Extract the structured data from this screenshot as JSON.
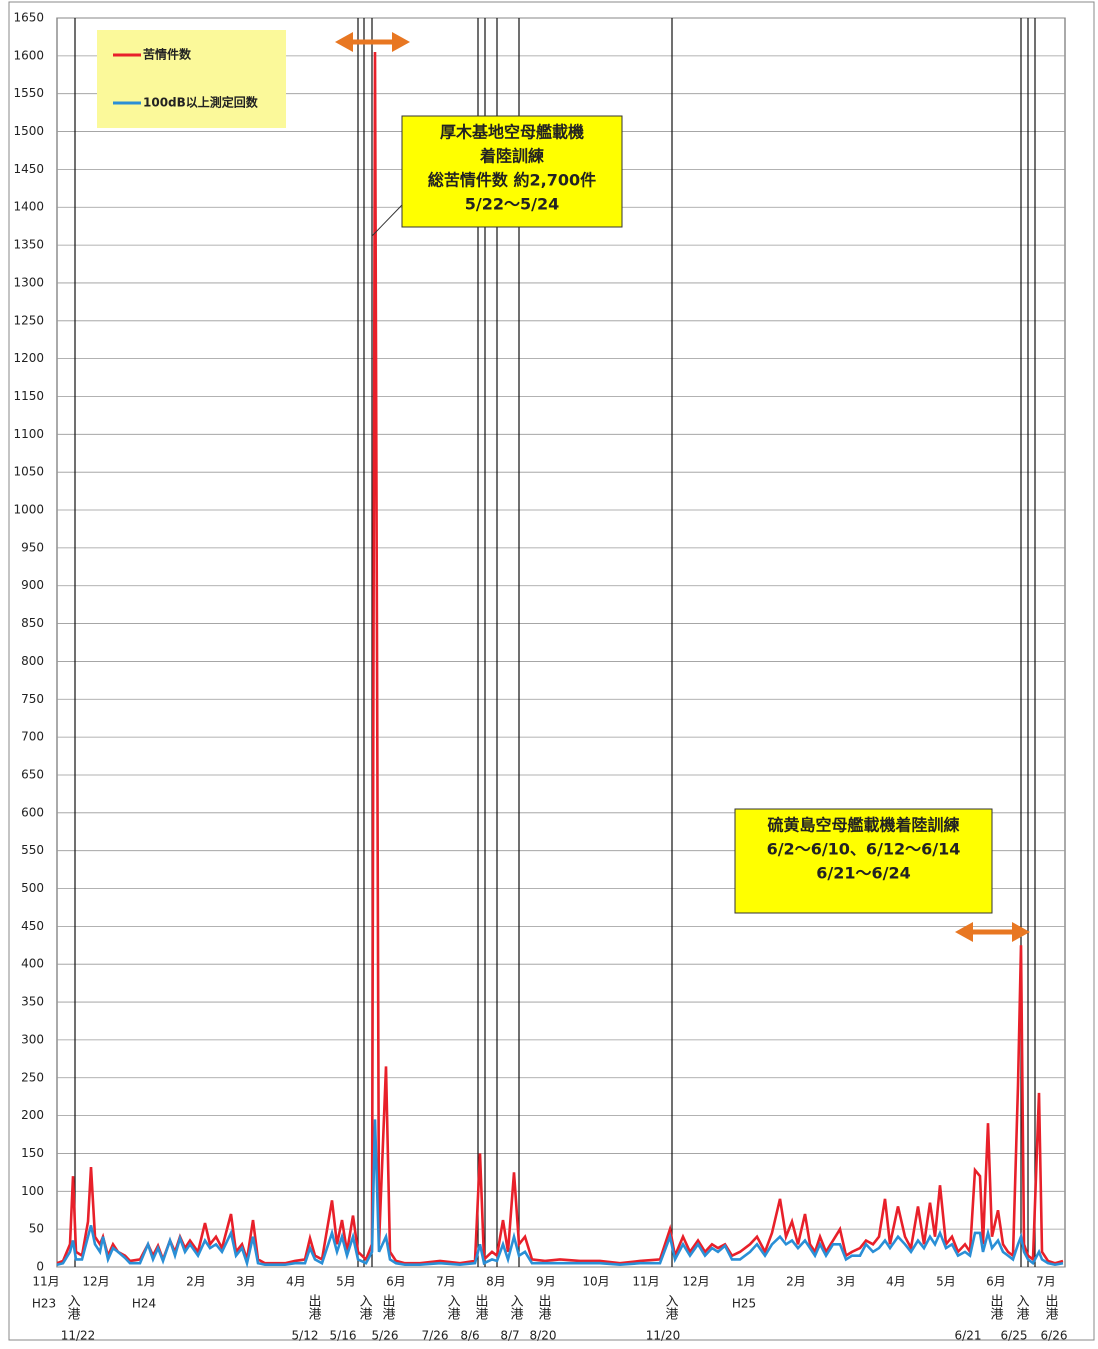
{
  "chart_data": {
    "type": "line",
    "x": [
      0.34,
      0.46,
      0.6,
      0.66,
      0.72,
      0.84,
      0.96,
      1.02,
      1.1,
      1.2,
      1.26,
      1.36,
      1.46,
      1.56,
      1.7,
      1.8,
      2,
      2.16,
      2.26,
      2.36,
      2.46,
      2.6,
      2.7,
      2.8,
      2.9,
      3,
      3.16,
      3.3,
      3.4,
      3.52,
      3.64,
      3.82,
      3.92,
      4.04,
      4.14,
      4.26,
      4.36,
      4.5,
      4.7,
      4.9,
      5.1,
      5.3,
      5.4,
      5.5,
      5.64,
      5.84,
      5.94,
      6.04,
      6.14,
      6.26,
      6.36,
      6.52,
      6.64,
      6.7,
      6.78,
      6.92,
      7,
      7.12,
      7.3,
      7.6,
      8,
      8.4,
      8.7,
      8.8,
      8.88,
      9.04,
      9.14,
      9.26,
      9.36,
      9.48,
      9.58,
      9.7,
      9.84,
      10.1,
      10.4,
      10.8,
      11.2,
      11.6,
      12,
      12.4,
      12.6,
      12.7,
      12.86,
      13,
      13.16,
      13.3,
      13.44,
      13.56,
      13.7,
      13.84,
      14,
      14.2,
      14.34,
      14.5,
      14.64,
      14.8,
      14.92,
      15.04,
      15.16,
      15.3,
      15.4,
      15.5,
      15.6,
      15.72,
      15.86,
      16,
      16.12,
      16.24,
      16.4,
      16.52,
      16.66,
      16.78,
      16.9,
      17,
      17.16,
      17.3,
      17.42,
      17.56,
      17.68,
      17.8,
      17.9,
      18,
      18.12,
      18.24,
      18.36,
      18.5,
      18.6,
      18.7,
      18.8,
      18.86,
      18.96,
      19.04,
      19.16,
      19.26,
      19.36,
      19.46,
      19.56,
      19.62,
      19.68,
      19.76,
      19.86,
      19.98,
      20.04,
      20.16,
      20.3,
      20.46
    ],
    "series": [
      {
        "name": "苦情件数",
        "color": "#e8202a",
        "values": [
          5,
          8,
          30,
          120,
          20,
          15,
          60,
          132,
          40,
          30,
          40,
          15,
          30,
          20,
          15,
          8,
          10,
          30,
          15,
          28,
          10,
          35,
          20,
          40,
          25,
          35,
          20,
          58,
          30,
          40,
          25,
          70,
          20,
          30,
          10,
          62,
          10,
          5,
          5,
          5,
          8,
          10,
          38,
          15,
          10,
          88,
          30,
          62,
          20,
          68,
          20,
          10,
          30,
          1605,
          30,
          265,
          20,
          8,
          5,
          5,
          8,
          5,
          8,
          150,
          10,
          20,
          15,
          62,
          20,
          125,
          30,
          40,
          10,
          8,
          10,
          8,
          8,
          5,
          8,
          10,
          50,
          15,
          40,
          20,
          35,
          20,
          30,
          25,
          30,
          15,
          20,
          30,
          40,
          20,
          45,
          90,
          40,
          60,
          30,
          70,
          30,
          20,
          40,
          20,
          35,
          50,
          15,
          20,
          25,
          35,
          30,
          40,
          90,
          30,
          80,
          40,
          25,
          80,
          30,
          85,
          40,
          108,
          30,
          40,
          20,
          30,
          20,
          128,
          120,
          30,
          190,
          40,
          75,
          30,
          20,
          15,
          240,
          425,
          30,
          15,
          10,
          230,
          20,
          8,
          5,
          8
        ]
      },
      {
        "name": "100dB以上測定回数",
        "color": "#2a8fd6",
        "values": [
          3,
          5,
          20,
          35,
          10,
          10,
          40,
          55,
          30,
          20,
          40,
          10,
          25,
          20,
          12,
          5,
          5,
          30,
          10,
          25,
          8,
          35,
          15,
          38,
          20,
          30,
          15,
          35,
          25,
          30,
          20,
          45,
          15,
          25,
          5,
          40,
          5,
          3,
          3,
          3,
          5,
          5,
          25,
          10,
          5,
          45,
          20,
          40,
          15,
          40,
          10,
          5,
          20,
          195,
          20,
          40,
          10,
          5,
          3,
          3,
          5,
          3,
          5,
          30,
          5,
          10,
          8,
          30,
          10,
          40,
          15,
          20,
          5,
          5,
          5,
          5,
          5,
          3,
          5,
          5,
          40,
          10,
          30,
          15,
          30,
          15,
          25,
          20,
          28,
          10,
          10,
          20,
          30,
          15,
          30,
          40,
          30,
          35,
          25,
          35,
          25,
          15,
          30,
          15,
          30,
          30,
          10,
          15,
          15,
          30,
          20,
          25,
          35,
          25,
          40,
          30,
          20,
          35,
          25,
          40,
          30,
          45,
          25,
          30,
          15,
          20,
          15,
          45,
          45,
          20,
          45,
          25,
          35,
          20,
          15,
          10,
          30,
          40,
          20,
          10,
          5,
          20,
          10,
          5,
          3,
          5
        ]
      }
    ],
    "xlim": [
      0.34,
      20.5
    ],
    "xticks": [
      {
        "value": 0,
        "label": "11月"
      },
      {
        "value": 1,
        "label": "12月"
      },
      {
        "value": 2,
        "label": "1月"
      },
      {
        "value": 3,
        "label": "2月"
      },
      {
        "value": 4,
        "label": "3月"
      },
      {
        "value": 5,
        "label": "4月"
      },
      {
        "value": 6,
        "label": "5月"
      },
      {
        "value": 7,
        "label": "6月"
      },
      {
        "value": 8,
        "label": "7月"
      },
      {
        "value": 9,
        "label": "8月"
      },
      {
        "value": 10,
        "label": "9月"
      },
      {
        "value": 11,
        "label": "10月"
      },
      {
        "value": 12,
        "label": "11月"
      },
      {
        "value": 13,
        "label": "12月"
      },
      {
        "value": 14,
        "label": "1月"
      },
      {
        "value": 15,
        "label": "2月"
      },
      {
        "value": 16,
        "label": "3月"
      },
      {
        "value": 17,
        "label": "4月"
      },
      {
        "value": 18,
        "label": "5月"
      },
      {
        "value": 19,
        "label": "6月"
      },
      {
        "value": 20,
        "label": "7月"
      }
    ],
    "year_labels": [
      {
        "x": 0,
        "text": "H23"
      },
      {
        "x": 2,
        "text": "H24"
      },
      {
        "x": 14,
        "text": "H25"
      }
    ],
    "ylim": [
      0,
      1650
    ],
    "yticks": [
      0,
      50,
      100,
      150,
      200,
      250,
      300,
      350,
      400,
      450,
      500,
      550,
      600,
      650,
      700,
      750,
      800,
      850,
      900,
      950,
      1000,
      1050,
      1100,
      1150,
      1200,
      1250,
      1300,
      1350,
      1400,
      1450,
      1500,
      1550,
      1600,
      1650
    ],
    "grid": true,
    "legend": "upper left",
    "events": [
      {
        "x": 0.7,
        "label": "入港",
        "date": "11/22"
      },
      {
        "x": 6.36,
        "label": "出港",
        "date": "5/12"
      },
      {
        "x": 6.48,
        "label": "入港",
        "date": "5/16"
      },
      {
        "x": 6.64,
        "label": "出港",
        "date": "5/26"
      },
      {
        "x": 8.76,
        "label": "入港",
        "date": "7/26"
      },
      {
        "x": 8.9,
        "label": "出港",
        "date": "8/6"
      },
      {
        "x": 9.14,
        "label": "入港",
        "date": "8/7"
      },
      {
        "x": 9.58,
        "label": "出港",
        "date": "8/20"
      },
      {
        "x": 12.64,
        "label": "入港",
        "date": "11/20"
      },
      {
        "x": 19.62,
        "label": "出港",
        "date": "6/21"
      },
      {
        "x": 19.76,
        "label": "入港",
        "date": "6/25"
      },
      {
        "x": 19.9,
        "label": "出港",
        "date": "6/26"
      }
    ],
    "annotations": [
      {
        "lines": [
          "厚木基地空母艦載機",
          "着陸訓練",
          "総苦情件数 約2,700件",
          "5/22～5/24"
        ]
      },
      {
        "lines": [
          "硫黄島空母艦載機着陸訓練",
          "6/2～6/10、6/12～6/14",
          "6/21～6/24"
        ]
      }
    ]
  }
}
